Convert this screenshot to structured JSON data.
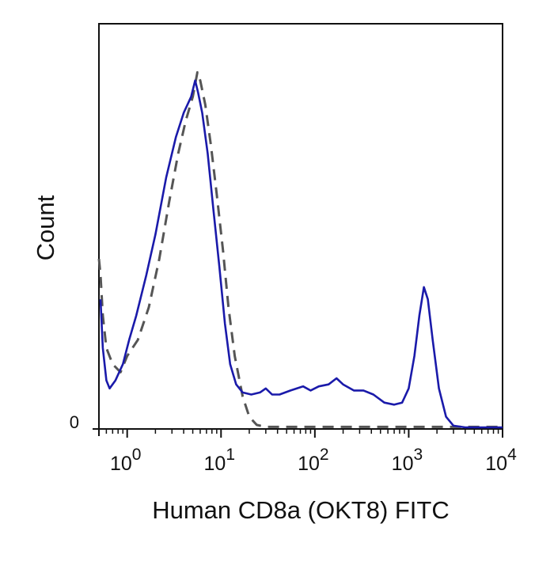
{
  "chart_data": {
    "type": "line",
    "title": "",
    "xlabel": "Human CD8a (OKT8) FITC",
    "ylabel": "Count",
    "x_scale": "log",
    "xlim": [
      0.5,
      10000
    ],
    "ylim": [
      0,
      100
    ],
    "grid": false,
    "legend": "none",
    "x_ticks": [
      {
        "value": 1,
        "base": "10",
        "exp": "0"
      },
      {
        "value": 10,
        "base": "10",
        "exp": "1"
      },
      {
        "value": 100,
        "base": "10",
        "exp": "2"
      },
      {
        "value": 1000,
        "base": "10",
        "exp": "3"
      },
      {
        "value": 10000,
        "base": "10",
        "exp": "4"
      }
    ],
    "y_ticks": [
      {
        "value": 0,
        "label": "0"
      }
    ],
    "series": [
      {
        "style": "dashed",
        "color": "#555555",
        "points": [
          [
            0.5,
            42
          ],
          [
            0.52,
            38
          ],
          [
            0.55,
            28
          ],
          [
            0.6,
            20
          ],
          [
            0.7,
            16
          ],
          [
            0.85,
            14
          ],
          [
            1.0,
            18
          ],
          [
            1.3,
            22
          ],
          [
            1.7,
            30
          ],
          [
            2.2,
            42
          ],
          [
            2.8,
            56
          ],
          [
            3.5,
            68
          ],
          [
            4.2,
            76
          ],
          [
            5.0,
            82
          ],
          [
            5.6,
            88
          ],
          [
            6.0,
            86
          ],
          [
            6.8,
            80
          ],
          [
            7.8,
            70
          ],
          [
            9.0,
            58
          ],
          [
            10.5,
            44
          ],
          [
            12.0,
            30
          ],
          [
            14.0,
            18
          ],
          [
            17.0,
            8
          ],
          [
            20.0,
            3
          ],
          [
            24.0,
            1
          ],
          [
            30.0,
            0.5
          ],
          [
            60.0,
            0.5
          ],
          [
            120.0,
            0.5
          ],
          [
            300.0,
            0.5
          ],
          [
            1000.0,
            0.5
          ],
          [
            3000.0,
            0.5
          ],
          [
            10000.0,
            0.5
          ]
        ]
      },
      {
        "style": "solid",
        "color": "#1a1aaa",
        "points": [
          [
            0.52,
            32
          ],
          [
            0.55,
            20
          ],
          [
            0.6,
            12
          ],
          [
            0.65,
            10
          ],
          [
            0.75,
            12
          ],
          [
            0.9,
            16
          ],
          [
            1.05,
            22
          ],
          [
            1.25,
            28
          ],
          [
            1.6,
            38
          ],
          [
            2.0,
            48
          ],
          [
            2.6,
            62
          ],
          [
            3.3,
            72
          ],
          [
            4.0,
            78
          ],
          [
            4.8,
            82
          ],
          [
            5.3,
            86
          ],
          [
            5.7,
            83
          ],
          [
            6.3,
            78
          ],
          [
            7.2,
            68
          ],
          [
            8.3,
            54
          ],
          [
            9.6,
            40
          ],
          [
            11.0,
            26
          ],
          [
            12.5,
            16
          ],
          [
            14.5,
            11
          ],
          [
            17.0,
            9
          ],
          [
            21.0,
            8.5
          ],
          [
            26.0,
            9
          ],
          [
            30.0,
            10
          ],
          [
            35.0,
            8.5
          ],
          [
            42.0,
            8.5
          ],
          [
            55.0,
            9.5
          ],
          [
            75.0,
            10.5
          ],
          [
            90.0,
            9.5
          ],
          [
            110.0,
            10.5
          ],
          [
            140.0,
            11
          ],
          [
            170.0,
            12.5
          ],
          [
            200.0,
            11
          ],
          [
            260.0,
            9.5
          ],
          [
            330.0,
            9.5
          ],
          [
            420.0,
            8.5
          ],
          [
            550.0,
            6.5
          ],
          [
            700.0,
            6
          ],
          [
            850.0,
            6.5
          ],
          [
            1000.0,
            10
          ],
          [
            1150.0,
            18
          ],
          [
            1300.0,
            28
          ],
          [
            1450.0,
            35
          ],
          [
            1600.0,
            32
          ],
          [
            1800.0,
            22
          ],
          [
            2100.0,
            10
          ],
          [
            2500.0,
            3
          ],
          [
            3000.0,
            0.8
          ],
          [
            4000.0,
            0.4
          ],
          [
            6000.0,
            0.4
          ],
          [
            10000.0,
            0.4
          ]
        ]
      }
    ]
  }
}
